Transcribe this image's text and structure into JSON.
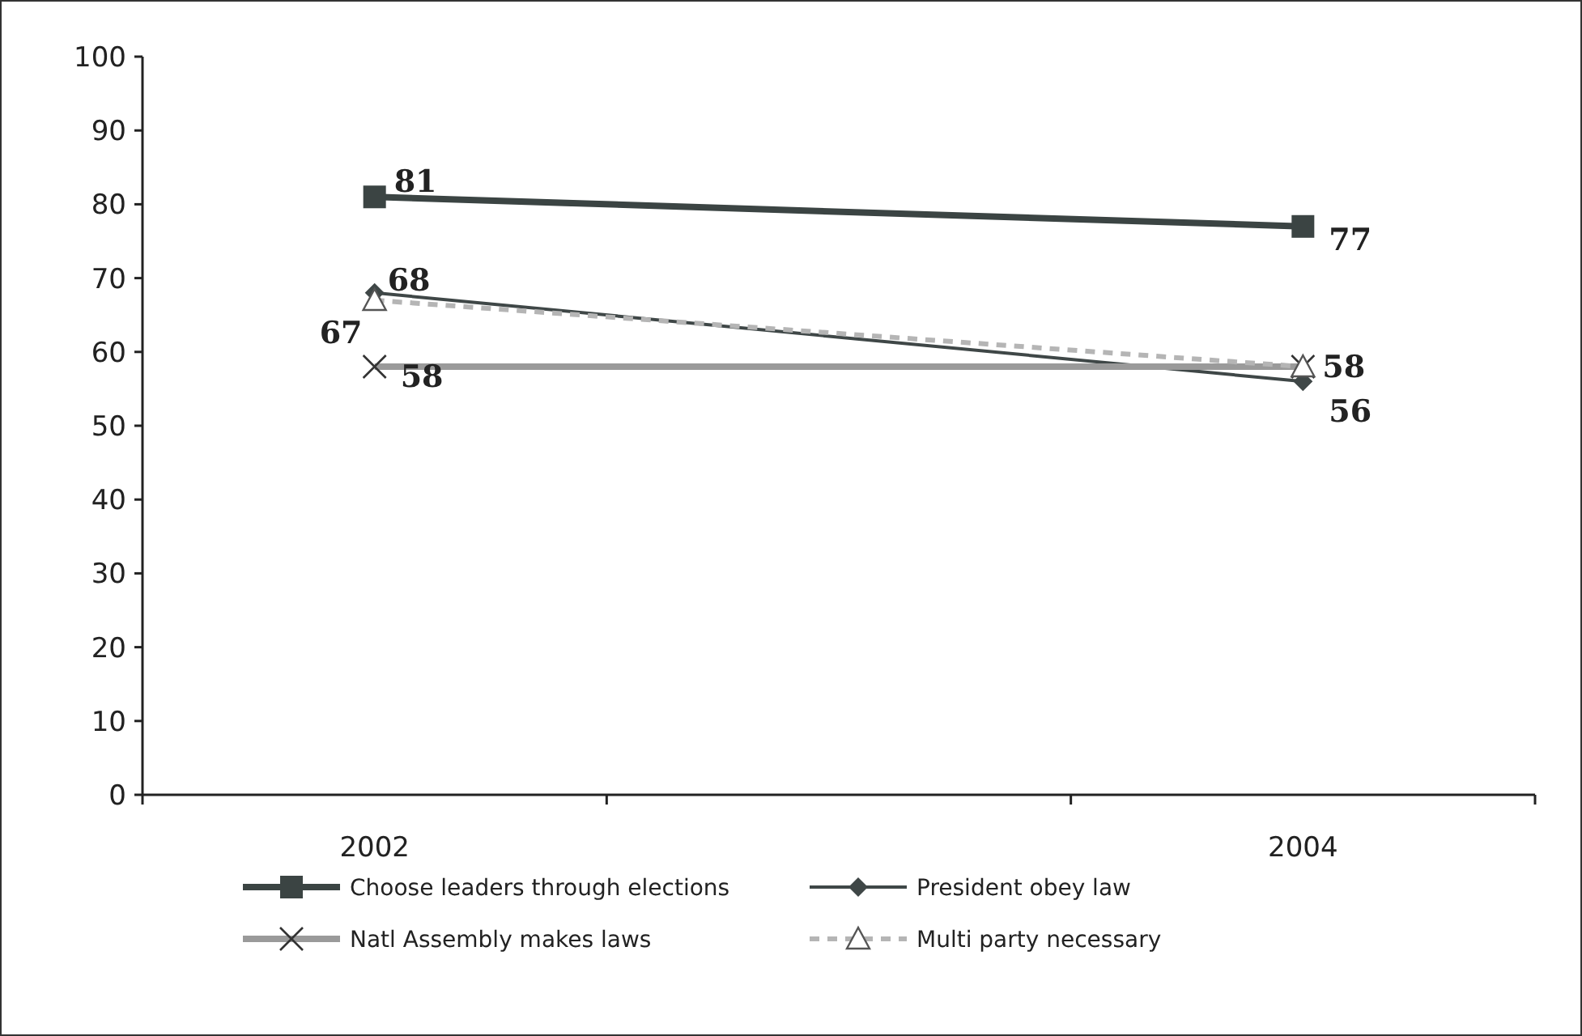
{
  "chart_data": {
    "type": "line",
    "categories": [
      "2002",
      "2004"
    ],
    "ylim": [
      0,
      100
    ],
    "yticks": [
      0,
      10,
      20,
      30,
      40,
      50,
      60,
      70,
      80,
      90,
      100
    ],
    "grid": false,
    "legend": "bottom",
    "series": [
      {
        "name": "Choose leaders through elections",
        "color": "#3b4443",
        "values": [
          81,
          77
        ],
        "marker": "square",
        "line_style": "solid",
        "value_labels": [
          "81",
          "77"
        ]
      },
      {
        "name": "President obey law",
        "color": "#3f4747",
        "values": [
          68,
          56
        ],
        "marker": "diamond",
        "line_style": "solid",
        "value_labels": [
          "68",
          "56"
        ]
      },
      {
        "name": "Natl Assembly makes laws",
        "color": "#9a9a9a",
        "values": [
          58,
          58
        ],
        "marker": "cross",
        "line_style": "solid",
        "value_labels": [
          "58",
          "58"
        ]
      },
      {
        "name": "Multi party necessary",
        "color": "#b5b5b5",
        "values": [
          67,
          58
        ],
        "marker": "triangle",
        "line_style": "dashed",
        "value_labels": [
          "67",
          null
        ]
      }
    ]
  }
}
